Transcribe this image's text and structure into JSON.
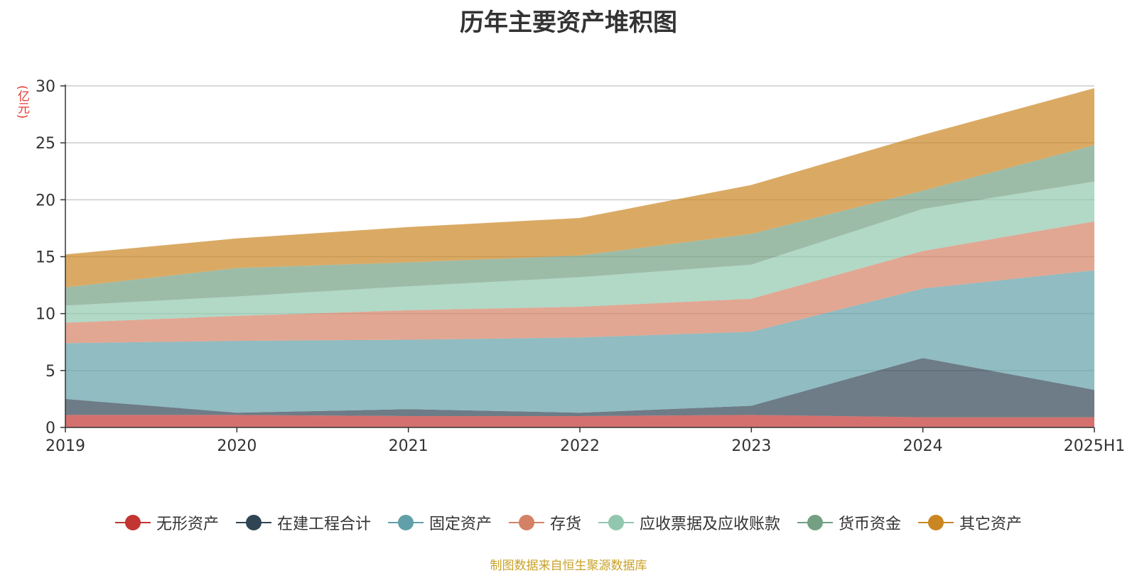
{
  "chart_data": {
    "type": "area",
    "stacked": true,
    "title": "历年主要资产堆积图",
    "unit_label": "(亿元)",
    "categories": [
      "2019",
      "2020",
      "2021",
      "2022",
      "2023",
      "2024",
      "2025H1"
    ],
    "ylim": [
      0,
      30
    ],
    "yticks": [
      0,
      5,
      10,
      15,
      20,
      25,
      30
    ],
    "grid": true,
    "legend_position": "bottom",
    "series": [
      {
        "name": "无形资产",
        "color": "#c23531",
        "values": [
          1.1,
          1.1,
          1.0,
          1.0,
          1.1,
          0.9,
          0.9
        ]
      },
      {
        "name": "在建工程合计",
        "color": "#2f4554",
        "values": [
          1.4,
          0.2,
          0.6,
          0.3,
          0.8,
          5.2,
          2.4
        ]
      },
      {
        "name": "固定资产",
        "color": "#61a0a8",
        "values": [
          4.9,
          6.3,
          6.1,
          6.6,
          6.5,
          6.1,
          10.5
        ]
      },
      {
        "name": "存货",
        "color": "#d48265",
        "values": [
          1.8,
          2.2,
          2.6,
          2.7,
          2.9,
          3.3,
          4.3
        ]
      },
      {
        "name": "应收票据及应收账款",
        "color": "#91c7ae",
        "values": [
          1.5,
          1.7,
          2.1,
          2.6,
          3.0,
          3.7,
          3.5
        ]
      },
      {
        "name": "货币资金",
        "color": "#749f83",
        "values": [
          1.6,
          2.5,
          2.1,
          1.9,
          2.7,
          1.6,
          3.2
        ]
      },
      {
        "name": "其它资产",
        "color": "#ca8622",
        "values": [
          2.9,
          2.6,
          3.1,
          3.3,
          4.3,
          4.9,
          5.0
        ]
      }
    ]
  },
  "footer": {
    "source": "制图数据来自恒生聚源数据库"
  }
}
